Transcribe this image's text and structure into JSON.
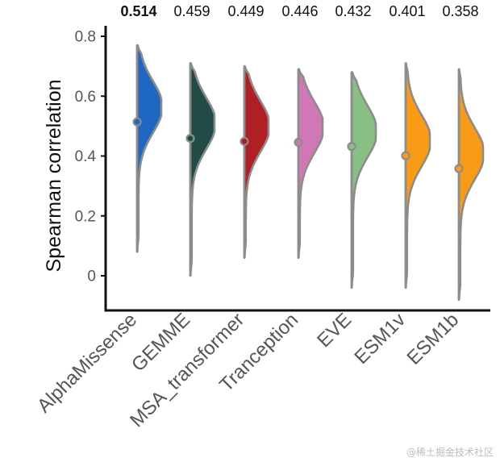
{
  "chart_data": {
    "type": "violin",
    "ylabel": "Spearman correlation",
    "ylim": [
      -0.12,
      0.84
    ],
    "yticks": [
      0,
      0.2,
      0.4,
      0.6,
      0.8
    ],
    "ytick_labels": [
      "0",
      "0.2",
      "0.4",
      "0.6",
      "0.8"
    ],
    "grid": false,
    "legend": "none",
    "categories": [
      "AlphaMissense",
      "GEMME",
      "MSA_transformer",
      "Tranception",
      "EVE",
      "ESM1v",
      "ESM1b"
    ],
    "medians": [
      0.514,
      0.459,
      0.449,
      0.446,
      0.432,
      0.401,
      0.358
    ],
    "median_labels": [
      "0.514",
      "0.459",
      "0.449",
      "0.446",
      "0.432",
      "0.401",
      "0.358"
    ],
    "highlighted_label": "0.514",
    "ranges": [
      [
        0.08,
        0.77
      ],
      [
        0.0,
        0.71
      ],
      [
        0.06,
        0.7
      ],
      [
        0.06,
        0.69
      ],
      [
        -0.04,
        0.68
      ],
      [
        -0.04,
        0.71
      ],
      [
        -0.08,
        0.69
      ]
    ],
    "colors": [
      "#1f68c1",
      "#224b45",
      "#b01f24",
      "#cf78b5",
      "#88bf82",
      "#f99b17",
      "#f99b17"
    ],
    "outline_color": "#8c8c8c"
  },
  "watermark": "@稀土掘金技术社区"
}
